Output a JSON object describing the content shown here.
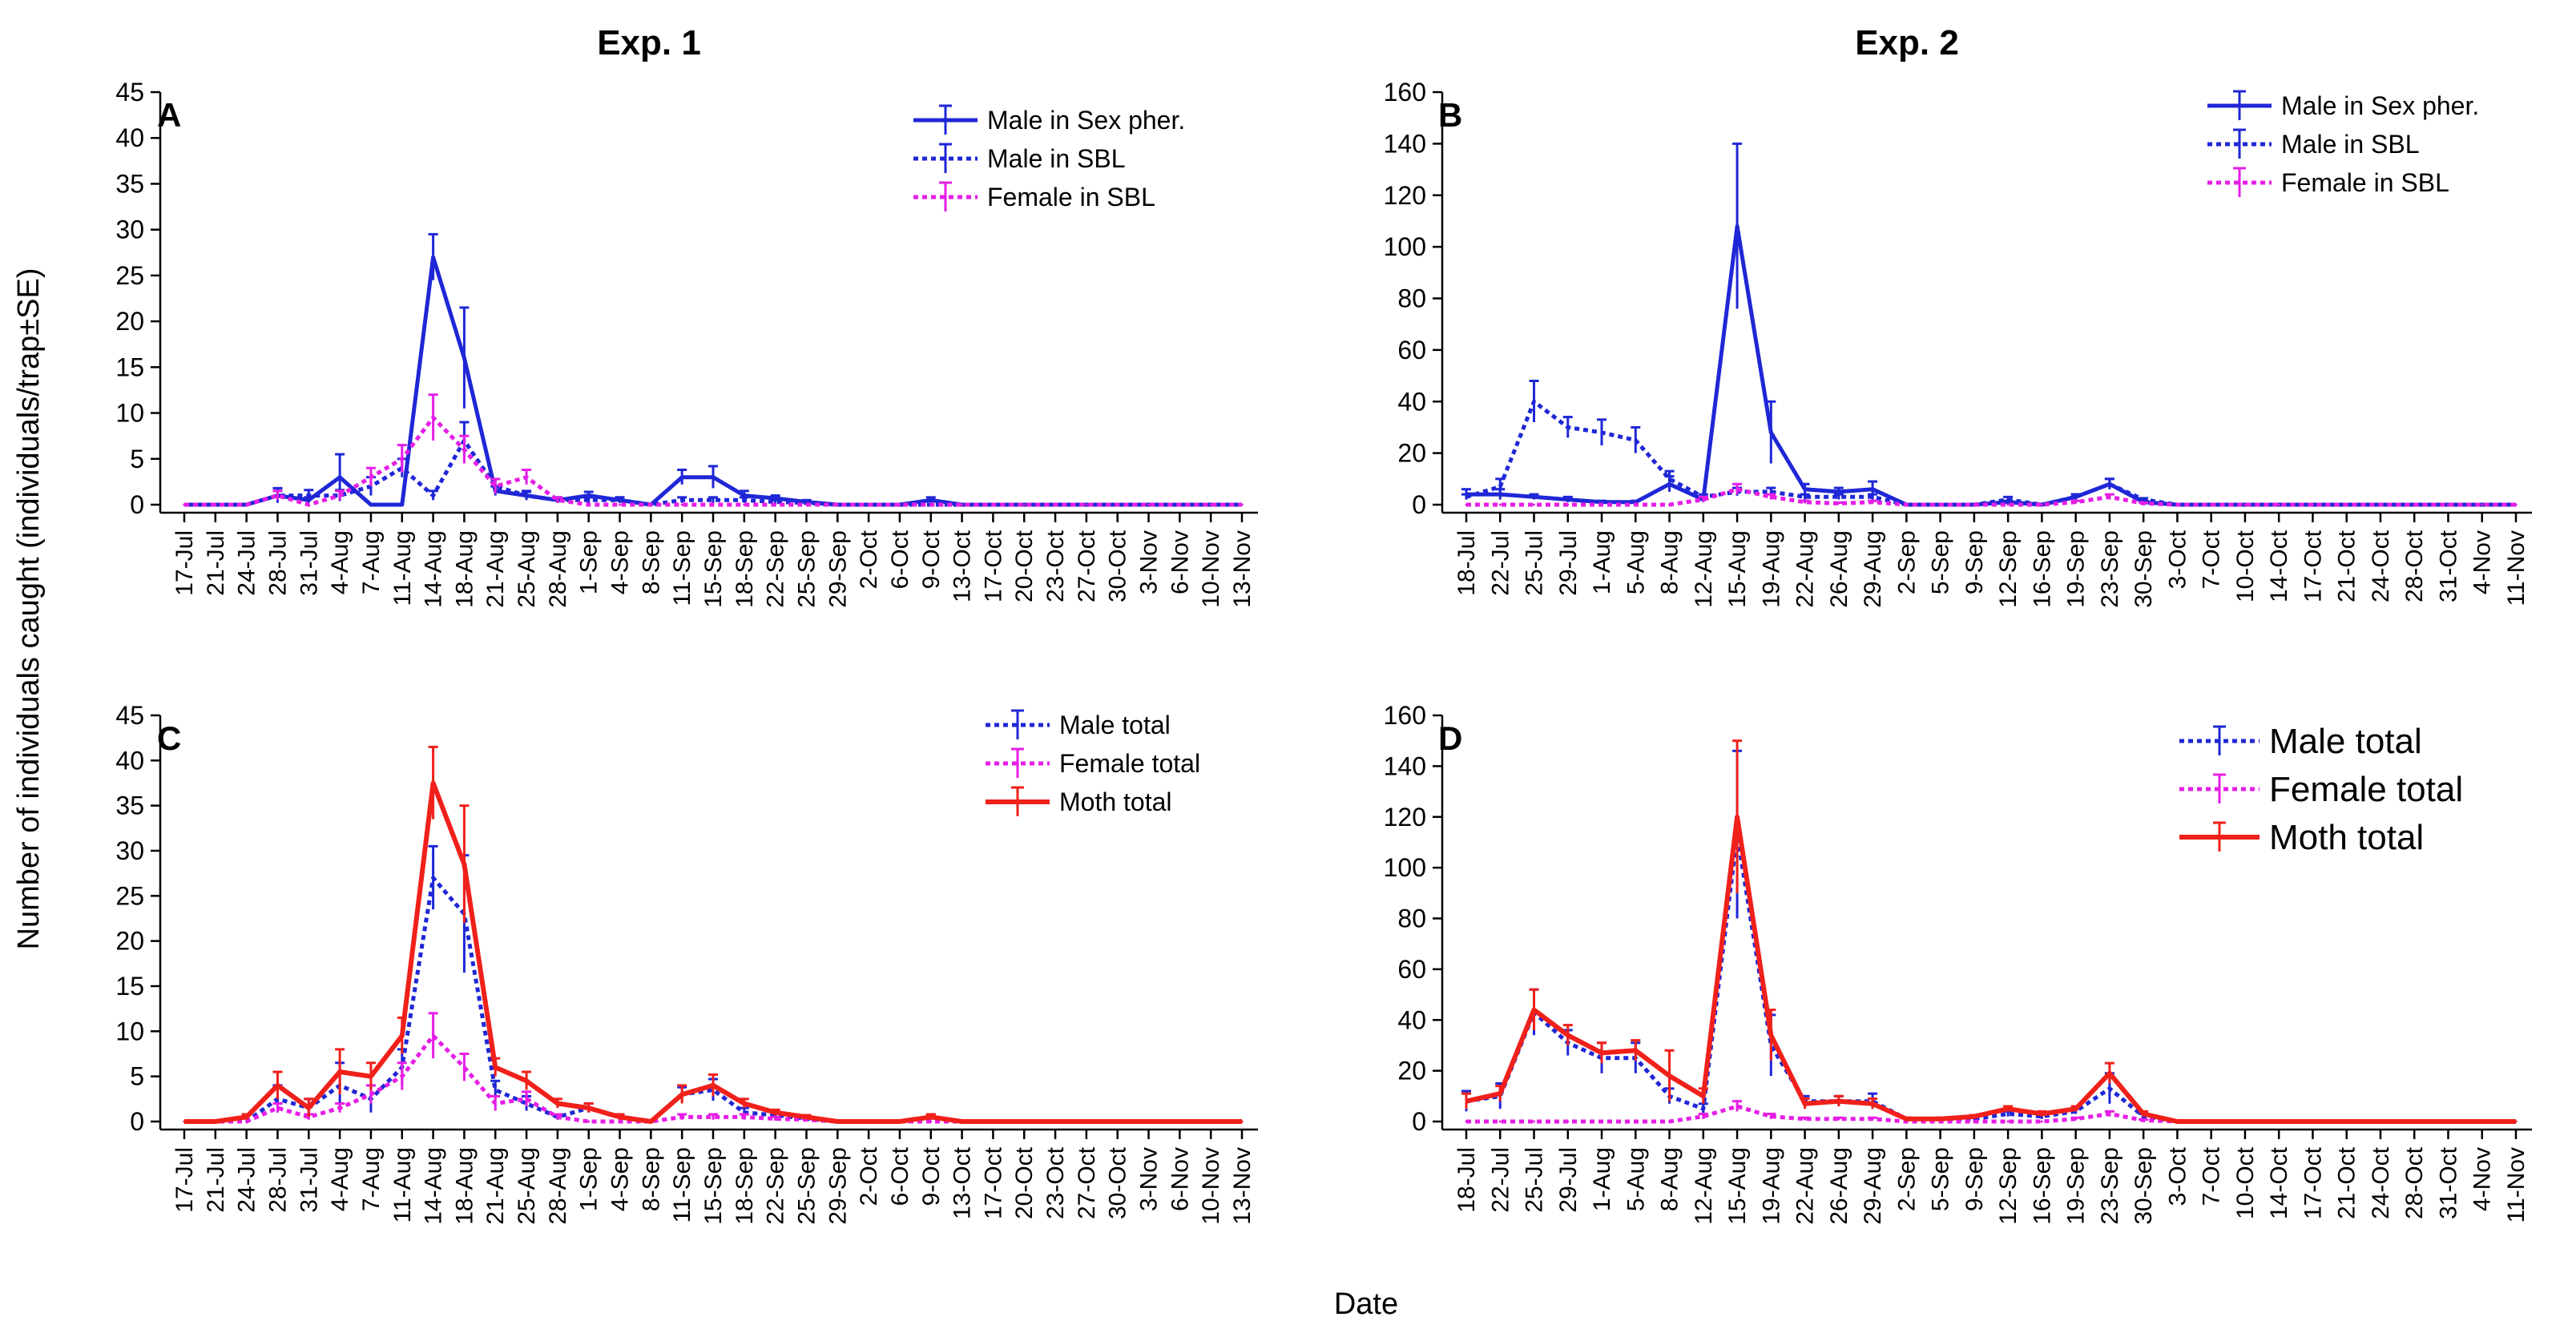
{
  "figure": {
    "ylabel": "Number of individuals caught (individuals/trap±SE)",
    "xlabel": "Date",
    "column_titles": [
      "Exp. 1",
      "Exp. 2"
    ]
  },
  "colors": {
    "blue": "#1f27d6",
    "magenta": "#e61ee6",
    "red": "#f0201a"
  },
  "chart_data": [
    {
      "panel": "A",
      "type": "line",
      "column_title": "Exp. 1",
      "legend_style": "normal",
      "categories": [
        "17-Jul",
        "21-Jul",
        "24-Jul",
        "28-Jul",
        "31-Jul",
        "4-Aug",
        "7-Aug",
        "11-Aug",
        "14-Aug",
        "18-Aug",
        "21-Aug",
        "25-Aug",
        "28-Aug",
        "1-Sep",
        "4-Sep",
        "8-Sep",
        "11-Sep",
        "15-Sep",
        "18-Sep",
        "22-Sep",
        "25-Sep",
        "29-Sep",
        "2-Oct",
        "6-Oct",
        "9-Oct",
        "13-Oct",
        "17-Oct",
        "20-Oct",
        "23-Oct",
        "27-Oct",
        "30-Oct",
        "3-Nov",
        "6-Nov",
        "10-Nov",
        "13-Nov"
      ],
      "ylim": [
        0,
        45
      ],
      "yticks": [
        0,
        5,
        10,
        15,
        20,
        25,
        30,
        35,
        40,
        45
      ],
      "series": [
        {
          "name": "Male in Sex pher.",
          "color": "blue",
          "dash": "solid",
          "width": 5,
          "values": [
            0,
            0,
            0,
            1,
            0.5,
            3,
            0,
            0,
            27,
            16,
            1.5,
            1,
            0.5,
            1,
            0.5,
            0,
            3,
            3,
            1,
            0.7,
            0.3,
            0,
            0,
            0,
            0.5,
            0,
            0,
            0,
            0,
            0,
            0,
            0,
            0,
            0,
            0
          ],
          "se": [
            0,
            0,
            0,
            0.5,
            0.3,
            2.5,
            0,
            0,
            2.5,
            5.5,
            0.5,
            0.4,
            0.3,
            0.4,
            0.3,
            0,
            0.8,
            1.2,
            0.5,
            0.3,
            0.2,
            0,
            0,
            0,
            0.3,
            0,
            0,
            0,
            0,
            0,
            0,
            0,
            0,
            0,
            0
          ]
        },
        {
          "name": "Male in SBL",
          "color": "blue",
          "dash": "dot",
          "width": 5,
          "values": [
            0,
            0,
            0,
            1,
            1,
            1,
            2,
            4,
            1,
            7,
            2,
            1,
            0.5,
            0.5,
            0.5,
            0,
            0.5,
            0.5,
            0.5,
            0.3,
            0.2,
            0,
            0,
            0,
            0,
            0,
            0,
            0,
            0,
            0,
            0,
            0,
            0,
            0,
            0
          ],
          "se": [
            0,
            0,
            0,
            0.8,
            0.6,
            0.6,
            1,
            1,
            0.5,
            2,
            0.8,
            0.5,
            0.3,
            0.3,
            0.3,
            0,
            0.3,
            0.3,
            0.3,
            0.2,
            0.1,
            0,
            0,
            0,
            0,
            0,
            0,
            0,
            0,
            0,
            0,
            0,
            0,
            0,
            0
          ]
        },
        {
          "name": "Female in SBL",
          "color": "magenta",
          "dash": "dot",
          "width": 5,
          "values": [
            0,
            0,
            0,
            1,
            0,
            1,
            3,
            5,
            9.5,
            6,
            2,
            3,
            0.5,
            0,
            0,
            0,
            0,
            0,
            0,
            0,
            0,
            0,
            0,
            0,
            0,
            0,
            0,
            0,
            0,
            0,
            0,
            0,
            0,
            0,
            0
          ],
          "se": [
            0,
            0,
            0,
            0.5,
            0,
            0.5,
            1,
            1.5,
            2.5,
            1.5,
            0.8,
            0.8,
            0.3,
            0,
            0,
            0,
            0,
            0,
            0,
            0,
            0,
            0,
            0,
            0,
            0,
            0,
            0,
            0,
            0,
            0,
            0,
            0,
            0,
            0,
            0
          ]
        }
      ]
    },
    {
      "panel": "B",
      "type": "line",
      "column_title": "Exp. 2",
      "legend_style": "normal",
      "categories": [
        "18-Jul",
        "22-Jul",
        "25-Jul",
        "29-Jul",
        "1-Aug",
        "5-Aug",
        "8-Aug",
        "12-Aug",
        "15-Aug",
        "19-Aug",
        "22-Aug",
        "26-Aug",
        "29-Aug",
        "2-Sep",
        "5-Sep",
        "9-Sep",
        "12-Sep",
        "16-Sep",
        "19-Sep",
        "23-Sep",
        "30-Sep",
        "3-Oct",
        "7-Oct",
        "10-Oct",
        "14-Oct",
        "17-Oct",
        "21-Oct",
        "24-Oct",
        "28-Oct",
        "31-Oct",
        "4-Nov",
        "11-Nov"
      ],
      "ylim": [
        0,
        160
      ],
      "yticks": [
        0,
        20,
        40,
        60,
        80,
        100,
        120,
        140,
        160
      ],
      "series": [
        {
          "name": "Male in Sex pher.",
          "color": "blue",
          "dash": "solid",
          "width": 5,
          "values": [
            4,
            4,
            3,
            2,
            1,
            1,
            8,
            2,
            108,
            28,
            6,
            5,
            6,
            0,
            0,
            0,
            1,
            0,
            3,
            8,
            1,
            0,
            0,
            0,
            0,
            0,
            0,
            0,
            0,
            0,
            0,
            0
          ],
          "se": [
            2,
            2,
            1,
            1,
            0.5,
            0.5,
            3,
            1,
            32,
            12,
            2,
            1.5,
            3,
            0,
            0,
            0,
            0.5,
            0,
            1,
            2,
            0.5,
            0,
            0,
            0,
            0,
            0,
            0,
            0,
            0,
            0,
            0,
            0
          ]
        },
        {
          "name": "Male in SBL",
          "color": "blue",
          "dash": "dot",
          "width": 5,
          "values": [
            3,
            7,
            40,
            30,
            28,
            25,
            10,
            3,
            5,
            5,
            3,
            3,
            3,
            0,
            0,
            0,
            2,
            0,
            3,
            8,
            2,
            0,
            0,
            0,
            0,
            0,
            0,
            0,
            0,
            0,
            0,
            0
          ],
          "se": [
            1,
            3,
            8,
            4,
            5,
            5,
            3,
            1,
            1.5,
            1.5,
            1,
            1,
            1,
            0,
            0,
            0,
            1,
            0,
            1,
            2,
            0.5,
            0,
            0,
            0,
            0,
            0,
            0,
            0,
            0,
            0,
            0,
            0
          ]
        },
        {
          "name": "Female in SBL",
          "color": "magenta",
          "dash": "dot",
          "width": 5,
          "values": [
            0,
            0,
            0,
            0,
            0,
            0,
            0,
            2,
            6,
            3,
            1,
            0.5,
            1,
            0,
            0,
            0,
            0,
            0,
            1,
            3,
            0.5,
            0,
            0,
            0,
            0,
            0,
            0,
            0,
            0,
            0,
            0,
            0
          ],
          "se": [
            0,
            0,
            0,
            0,
            0,
            0,
            0,
            1,
            2,
            1,
            0.5,
            0.3,
            0.5,
            0,
            0,
            0,
            0,
            0,
            0.5,
            1,
            0.3,
            0,
            0,
            0,
            0,
            0,
            0,
            0,
            0,
            0,
            0,
            0
          ]
        }
      ]
    },
    {
      "panel": "C",
      "type": "line",
      "column_title": "Exp. 1",
      "legend_style": "normal",
      "categories": [
        "17-Jul",
        "21-Jul",
        "24-Jul",
        "28-Jul",
        "31-Jul",
        "4-Aug",
        "7-Aug",
        "11-Aug",
        "14-Aug",
        "18-Aug",
        "21-Aug",
        "25-Aug",
        "28-Aug",
        "1-Sep",
        "4-Sep",
        "8-Sep",
        "11-Sep",
        "15-Sep",
        "18-Sep",
        "22-Sep",
        "25-Sep",
        "29-Sep",
        "2-Oct",
        "6-Oct",
        "9-Oct",
        "13-Oct",
        "17-Oct",
        "20-Oct",
        "23-Oct",
        "27-Oct",
        "30-Oct",
        "3-Nov",
        "6-Nov",
        "10-Nov",
        "13-Nov"
      ],
      "ylim": [
        0,
        45
      ],
      "yticks": [
        0,
        5,
        10,
        15,
        20,
        25,
        30,
        35,
        40,
        45
      ],
      "series": [
        {
          "name": "Male total",
          "color": "blue",
          "dash": "dot",
          "width": 5,
          "values": [
            0,
            0,
            0,
            2.5,
            1.5,
            4,
            2.5,
            6,
            27,
            23,
            3.5,
            2,
            0.5,
            1.5,
            0.5,
            0,
            3,
            3.5,
            1,
            0.7,
            0.3,
            0,
            0,
            0,
            0.5,
            0,
            0,
            0,
            0,
            0,
            0,
            0,
            0,
            0,
            0
          ],
          "se": [
            0,
            0,
            0,
            1.5,
            1,
            2.5,
            1.5,
            2,
            3.5,
            6.5,
            1,
            0.8,
            0.3,
            0.5,
            0.3,
            0,
            0.8,
            1.2,
            0.5,
            0.3,
            0.2,
            0,
            0,
            0,
            0.3,
            0,
            0,
            0,
            0,
            0,
            0,
            0,
            0,
            0,
            0
          ]
        },
        {
          "name": "Female total",
          "color": "magenta",
          "dash": "dot",
          "width": 5,
          "values": [
            0,
            0,
            0,
            1.5,
            0.5,
            1.5,
            3,
            5,
            9.5,
            6,
            2,
            2.5,
            0.5,
            0,
            0,
            0,
            0.5,
            0.5,
            0.5,
            0.3,
            0.2,
            0,
            0,
            0,
            0,
            0,
            0,
            0,
            0,
            0,
            0,
            0,
            0,
            0,
            0
          ],
          "se": [
            0,
            0,
            0,
            0.5,
            0.3,
            0.5,
            1,
            1.5,
            2.5,
            1.5,
            0.8,
            0.8,
            0.3,
            0,
            0,
            0,
            0.3,
            0.3,
            0.3,
            0.2,
            0.1,
            0,
            0,
            0,
            0,
            0,
            0,
            0,
            0,
            0,
            0,
            0,
            0,
            0,
            0
          ]
        },
        {
          "name": "Moth total",
          "color": "red",
          "dash": "solid",
          "width": 6,
          "values": [
            0,
            0,
            0.5,
            4,
            1.5,
            5.5,
            5,
            9.5,
            37.5,
            28.5,
            6,
            4.5,
            2,
            1.5,
            0.5,
            0,
            3,
            4,
            2,
            1,
            0.5,
            0,
            0,
            0,
            0.5,
            0,
            0,
            0,
            0,
            0,
            0,
            0,
            0,
            0,
            0
          ],
          "se": [
            0,
            0,
            0.3,
            1.5,
            1,
            2.5,
            1.5,
            2,
            4,
            6.5,
            1,
            1,
            0.5,
            0.5,
            0.3,
            0,
            1,
            1.2,
            0.5,
            0.3,
            0.2,
            0,
            0,
            0,
            0.3,
            0,
            0,
            0,
            0,
            0,
            0,
            0,
            0,
            0,
            0
          ]
        }
      ]
    },
    {
      "panel": "D",
      "type": "line",
      "column_title": "Exp. 2",
      "legend_style": "big",
      "categories": [
        "18-Jul",
        "22-Jul",
        "25-Jul",
        "29-Jul",
        "1-Aug",
        "5-Aug",
        "8-Aug",
        "12-Aug",
        "15-Aug",
        "19-Aug",
        "22-Aug",
        "26-Aug",
        "29-Aug",
        "2-Sep",
        "5-Sep",
        "9-Sep",
        "12-Sep",
        "16-Sep",
        "19-Sep",
        "23-Sep",
        "30-Sep",
        "3-Oct",
        "7-Oct",
        "10-Oct",
        "14-Oct",
        "17-Oct",
        "21-Oct",
        "24-Oct",
        "28-Oct",
        "31-Oct",
        "4-Nov",
        "11-Nov"
      ],
      "ylim": [
        0,
        160
      ],
      "yticks": [
        0,
        20,
        40,
        60,
        80,
        100,
        120,
        140,
        160
      ],
      "series": [
        {
          "name": "Male total",
          "color": "blue",
          "dash": "dot",
          "width": 5,
          "values": [
            8,
            10,
            43,
            31,
            25,
            25,
            10,
            5,
            113,
            30,
            8,
            8,
            8,
            1,
            1,
            1,
            3,
            2,
            4,
            13,
            2,
            0,
            0,
            0,
            0,
            0,
            0,
            0,
            0,
            0,
            0,
            0
          ],
          "se": [
            4,
            5,
            9,
            5,
            6,
            6,
            3,
            2,
            33,
            12,
            2,
            2,
            3,
            0.5,
            0.5,
            0.5,
            1,
            1,
            1,
            6,
            1,
            0,
            0,
            0,
            0,
            0,
            0,
            0,
            0,
            0,
            0,
            0
          ]
        },
        {
          "name": "Female total",
          "color": "magenta",
          "dash": "dot",
          "width": 5,
          "values": [
            0,
            0,
            0,
            0,
            0,
            0,
            0,
            2,
            6,
            2,
            1,
            1,
            1,
            0,
            0,
            0,
            0,
            0,
            1,
            3,
            0.5,
            0,
            0,
            0,
            0,
            0,
            0,
            0,
            0,
            0,
            0,
            0
          ],
          "se": [
            0,
            0,
            0,
            0,
            0,
            0,
            0,
            1,
            2,
            1,
            0.5,
            0.5,
            0.5,
            0,
            0,
            0,
            0,
            0,
            0.5,
            1,
            0.3,
            0,
            0,
            0,
            0,
            0,
            0,
            0,
            0,
            0,
            0,
            0
          ]
        },
        {
          "name": "Moth total",
          "color": "red",
          "dash": "solid",
          "width": 6,
          "values": [
            8,
            11,
            44,
            34,
            27,
            28,
            18,
            10,
            120,
            34,
            7,
            8,
            7,
            1,
            1,
            2,
            5,
            3,
            5,
            19,
            3,
            0,
            0,
            0,
            0,
            0,
            0,
            0,
            0,
            0,
            0,
            0
          ],
          "se": [
            3,
            3,
            8,
            4,
            4,
            4,
            10,
            3,
            30,
            10,
            2,
            2,
            2,
            0.5,
            0.5,
            0.5,
            1,
            1,
            1,
            4,
            1,
            0,
            0,
            0,
            0,
            0,
            0,
            0,
            0,
            0,
            0,
            0
          ]
        }
      ]
    }
  ]
}
